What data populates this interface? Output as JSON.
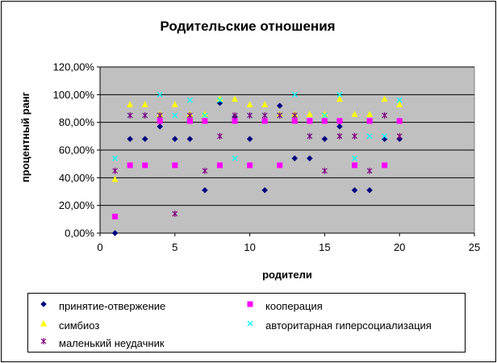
{
  "chart_data": {
    "type": "scatter",
    "title": "Родительские отношения",
    "xlabel": "родители",
    "ylabel": "процентный ранг",
    "xlim": [
      0,
      25
    ],
    "ylim": [
      0,
      120
    ],
    "x_ticks": [
      "0",
      "5",
      "10",
      "15",
      "20",
      "25"
    ],
    "y_ticks": [
      "0,00%",
      "20,00%",
      "40,00%",
      "60,00%",
      "80,00%",
      "100,00%",
      "120,00%"
    ],
    "grid": "horizontal",
    "plot_background": "#c0c0c0",
    "legend_position": "bottom",
    "series": [
      {
        "name": "принятие-отвержение",
        "color": "#000080",
        "marker": "diamond",
        "points": [
          [
            1,
            0
          ],
          [
            2,
            68
          ],
          [
            3,
            68
          ],
          [
            4,
            77
          ],
          [
            5,
            68
          ],
          [
            6,
            68
          ],
          [
            7,
            31
          ],
          [
            8,
            94
          ],
          [
            9,
            84
          ],
          [
            10,
            68
          ],
          [
            11,
            31
          ],
          [
            12,
            92
          ],
          [
            13,
            54
          ],
          [
            14,
            54
          ],
          [
            15,
            68
          ],
          [
            16,
            77
          ],
          [
            17,
            31
          ],
          [
            18,
            31
          ],
          [
            19,
            68
          ],
          [
            20,
            68
          ]
        ]
      },
      {
        "name": "кооперация",
        "color": "#ff00ff",
        "marker": "square",
        "points": [
          [
            1,
            12
          ],
          [
            2,
            49
          ],
          [
            3,
            49
          ],
          [
            4,
            81
          ],
          [
            5,
            49
          ],
          [
            6,
            81
          ],
          [
            7,
            81
          ],
          [
            8,
            49
          ],
          [
            9,
            81
          ],
          [
            10,
            49
          ],
          [
            11,
            81
          ],
          [
            12,
            49
          ],
          [
            13,
            81
          ],
          [
            14,
            81
          ],
          [
            15,
            81
          ],
          [
            16,
            81
          ],
          [
            17,
            49
          ],
          [
            18,
            81
          ],
          [
            19,
            49
          ],
          [
            20,
            81
          ]
        ]
      },
      {
        "name": "симбиоз",
        "color": "#ffff00",
        "marker": "triangle",
        "points": [
          [
            1,
            39
          ],
          [
            2,
            93
          ],
          [
            3,
            93
          ],
          [
            4,
            86
          ],
          [
            5,
            93
          ],
          [
            6,
            86
          ],
          [
            7,
            86
          ],
          [
            8,
            97
          ],
          [
            9,
            97
          ],
          [
            10,
            93
          ],
          [
            11,
            93
          ],
          [
            12,
            86
          ],
          [
            13,
            86
          ],
          [
            14,
            86
          ],
          [
            15,
            86
          ],
          [
            16,
            97
          ],
          [
            17,
            86
          ],
          [
            18,
            86
          ],
          [
            19,
            97
          ],
          [
            20,
            93
          ]
        ]
      },
      {
        "name": "авторитарная гиперсоциализация",
        "color": "#00ffff",
        "marker": "x",
        "points": [
          [
            1,
            54
          ],
          [
            2,
            85
          ],
          [
            3,
            85
          ],
          [
            4,
            100
          ],
          [
            5,
            85
          ],
          [
            6,
            96
          ],
          [
            7,
            85
          ],
          [
            8,
            96
          ],
          [
            9,
            54
          ],
          [
            10,
            85
          ],
          [
            11,
            85
          ],
          [
            12,
            85
          ],
          [
            13,
            100
          ],
          [
            14,
            70
          ],
          [
            15,
            85
          ],
          [
            16,
            100
          ],
          [
            17,
            54
          ],
          [
            18,
            70
          ],
          [
            19,
            70
          ],
          [
            20,
            96
          ]
        ]
      },
      {
        "name": "маленький неудачник",
        "color": "#800080",
        "marker": "star",
        "points": [
          [
            1,
            45
          ],
          [
            2,
            85
          ],
          [
            3,
            85
          ],
          [
            4,
            85
          ],
          [
            5,
            14
          ],
          [
            6,
            85
          ],
          [
            7,
            45
          ],
          [
            8,
            70
          ],
          [
            9,
            85
          ],
          [
            10,
            85
          ],
          [
            11,
            85
          ],
          [
            12,
            85
          ],
          [
            13,
            85
          ],
          [
            14,
            70
          ],
          [
            15,
            45
          ],
          [
            16,
            70
          ],
          [
            17,
            70
          ],
          [
            18,
            45
          ],
          [
            19,
            85
          ],
          [
            20,
            70
          ]
        ]
      }
    ]
  }
}
